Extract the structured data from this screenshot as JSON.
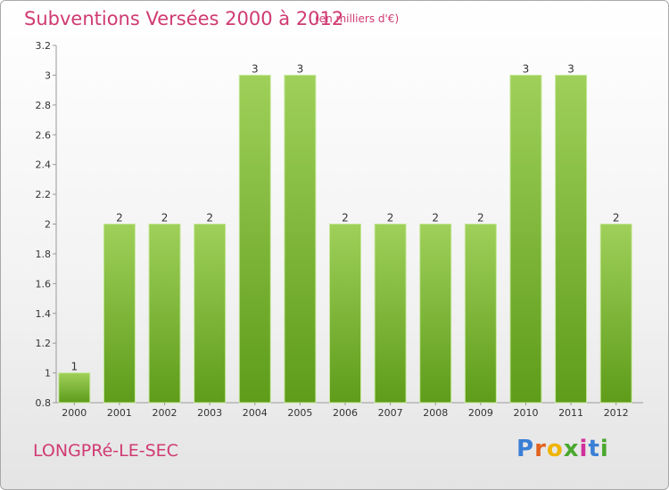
{
  "header": {
    "title": "Subventions Versées 2000 à 2012",
    "unit": "(en milliers d'€)"
  },
  "footer": {
    "commune": "LONGPRé-LE-SEC",
    "logo_letters": [
      {
        "ch": "P",
        "color": "#3a7fd5"
      },
      {
        "ch": "r",
        "color": "#e2631f"
      },
      {
        "ch": "o",
        "color": "#f0b400"
      },
      {
        "ch": "x",
        "color": "#4aa82e"
      },
      {
        "ch": "i",
        "color": "#d0309a"
      },
      {
        "ch": "t",
        "color": "#3a7fd5"
      },
      {
        "ch": "i",
        "color": "#4aa82e"
      }
    ]
  },
  "chart_data": {
    "type": "bar",
    "title": "Subventions Versées 2000 à 2012",
    "xlabel": "",
    "ylabel": "",
    "ylim": [
      0.8,
      3.2
    ],
    "yticks": [
      0.8,
      1,
      1.2,
      1.4,
      1.6,
      1.8,
      2,
      2.2,
      2.4,
      2.6,
      2.8,
      3,
      3.2
    ],
    "categories": [
      "2000",
      "2001",
      "2002",
      "2003",
      "2004",
      "2005",
      "2006",
      "2007",
      "2008",
      "2009",
      "2010",
      "2011",
      "2012"
    ],
    "values": [
      1,
      2,
      2,
      2,
      3,
      3,
      2,
      2,
      2,
      2,
      3,
      3,
      2
    ],
    "bar_color_top": "#9fd05a",
    "bar_color_bottom": "#5e9c1a",
    "grid": false
  }
}
